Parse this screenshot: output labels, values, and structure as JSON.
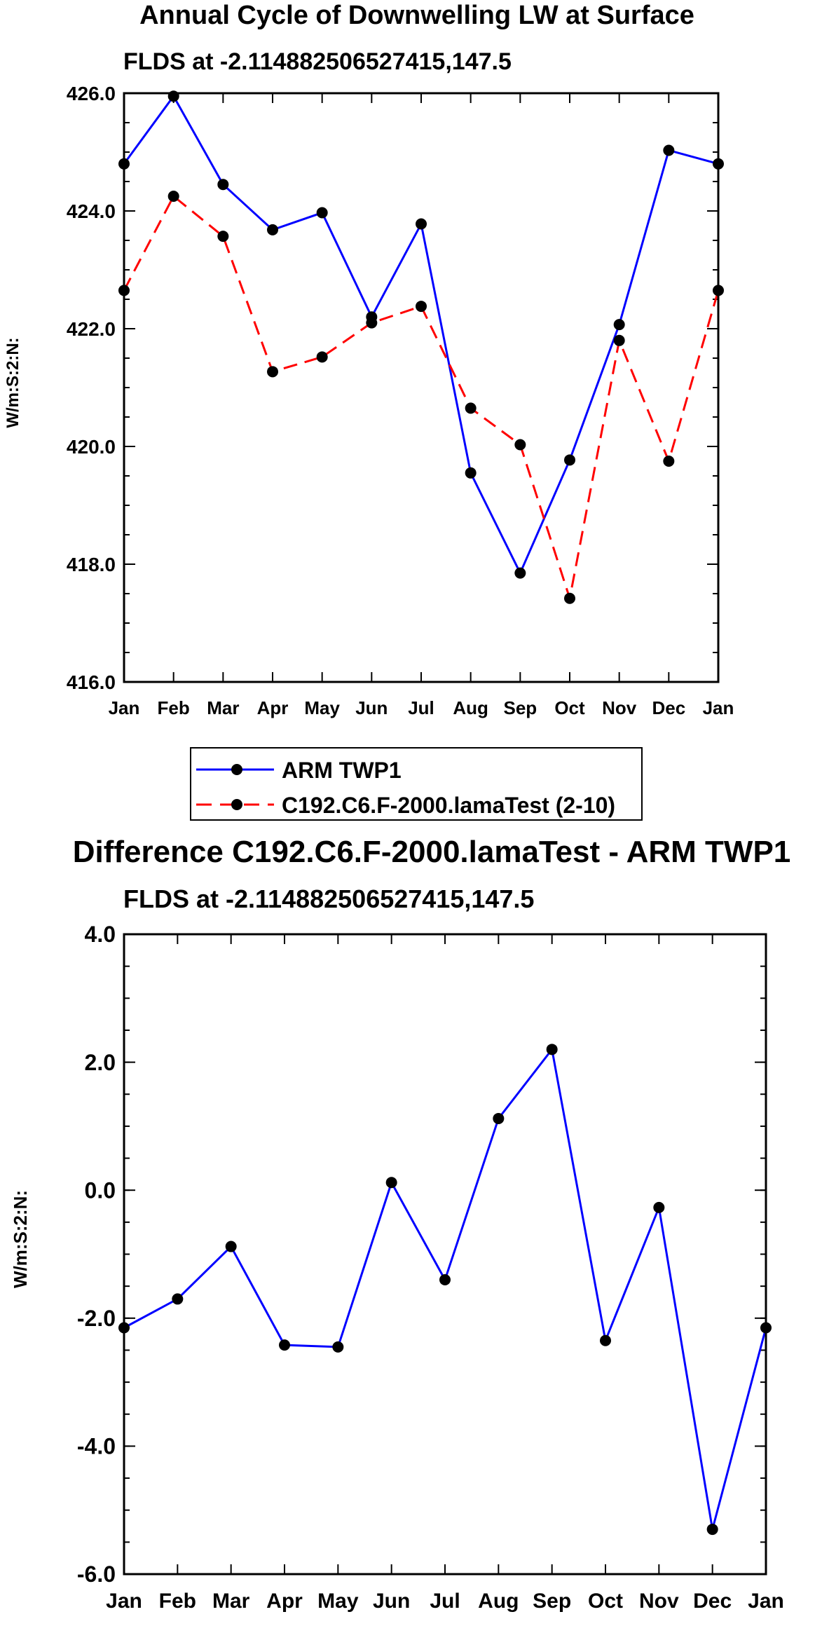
{
  "chart_data": [
    {
      "type": "line",
      "title": "Annual Cycle of Downwelling LW at Surface",
      "subtitle": "FLDS at -2.114882506527415,147.5",
      "xlabel": "",
      "ylabel": "W/m:S:2:N:",
      "categories": [
        "Jan",
        "Feb",
        "Mar",
        "Apr",
        "May",
        "Jun",
        "Jul",
        "Aug",
        "Sep",
        "Oct",
        "Nov",
        "Dec",
        "Jan"
      ],
      "ylim": [
        416.0,
        426.0
      ],
      "yticks": [
        "416.0",
        "418.0",
        "420.0",
        "422.0",
        "424.0",
        "426.0"
      ],
      "series": [
        {
          "name": "ARM TWP1",
          "color": "#0000ff",
          "dash": "solid",
          "values": [
            424.8,
            425.95,
            424.45,
            423.68,
            423.97,
            422.2,
            423.78,
            419.55,
            417.85,
            419.77,
            422.07,
            425.03,
            424.8
          ]
        },
        {
          "name": "C192.C6.F-2000.lamaTest (2-10)",
          "color": "#ff0000",
          "dash": "dashed",
          "values": [
            422.65,
            424.25,
            423.57,
            421.27,
            421.52,
            422.1,
            422.38,
            420.65,
            420.03,
            417.42,
            421.8,
            419.75,
            422.65
          ]
        }
      ],
      "legend_position": "bottom"
    },
    {
      "type": "line",
      "title": "Difference C192.C6.F-2000.lamaTest - ARM TWP1",
      "subtitle": "FLDS at -2.114882506527415,147.5",
      "xlabel": "",
      "ylabel": "W/m:S:2:N:",
      "categories": [
        "Jan",
        "Feb",
        "Mar",
        "Apr",
        "May",
        "Jun",
        "Jul",
        "Aug",
        "Sep",
        "Oct",
        "Nov",
        "Dec",
        "Jan"
      ],
      "ylim": [
        -6.0,
        4.0
      ],
      "yticks": [
        "-6.0",
        "-4.0",
        "-2.0",
        "0.0",
        "2.0",
        "4.0"
      ],
      "series": [
        {
          "name": "Difference",
          "color": "#0000ff",
          "dash": "solid",
          "values": [
            -2.15,
            -1.7,
            -0.88,
            -2.42,
            -2.45,
            0.12,
            -1.4,
            1.12,
            2.2,
            -2.35,
            -0.27,
            -5.3,
            -2.15
          ]
        }
      ]
    }
  ]
}
